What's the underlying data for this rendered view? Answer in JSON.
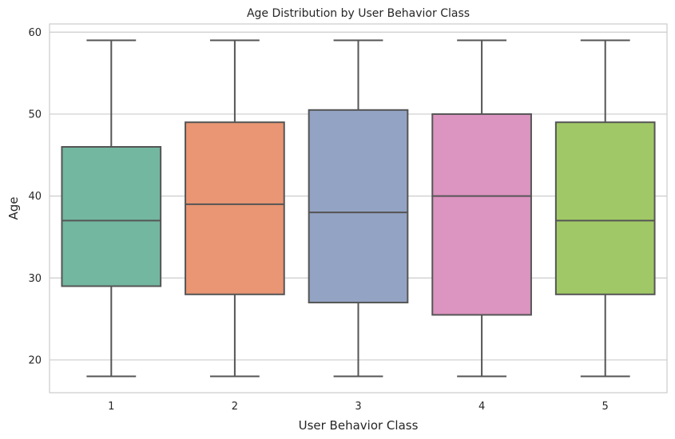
{
  "chart_data": {
    "type": "box",
    "title": "Age Distribution by User Behavior Class",
    "xlabel": "User Behavior Class",
    "ylabel": "Age",
    "ylim": [
      16,
      61
    ],
    "yticks": [
      20,
      30,
      40,
      50,
      60
    ],
    "categories": [
      "1",
      "2",
      "3",
      "4",
      "5"
    ],
    "grid": true,
    "colors": [
      "#73b7a0",
      "#ea9674",
      "#93a3c3",
      "#dc94c0",
      "#a1c866"
    ],
    "box_edge_color": "#555555",
    "grid_color": "#cccccc",
    "boxes": [
      {
        "category": "1",
        "min": 18,
        "q1": 29,
        "median": 37,
        "q3": 46,
        "max": 59
      },
      {
        "category": "2",
        "min": 18,
        "q1": 28,
        "median": 39,
        "q3": 49,
        "max": 59
      },
      {
        "category": "3",
        "min": 18,
        "q1": 27,
        "median": 38,
        "q3": 50.5,
        "max": 59
      },
      {
        "category": "4",
        "min": 18,
        "q1": 25.5,
        "median": 40,
        "q3": 50,
        "max": 59
      },
      {
        "category": "5",
        "min": 18,
        "q1": 28,
        "median": 37,
        "q3": 49,
        "max": 59
      }
    ]
  }
}
